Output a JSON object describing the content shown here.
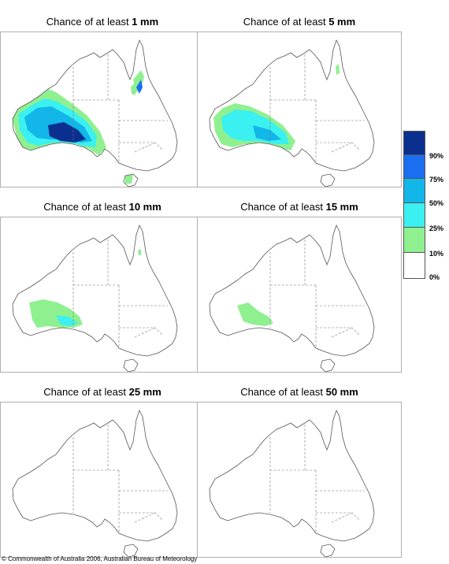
{
  "panels": [
    {
      "prefix": "Chance of at least",
      "amount": "1 mm",
      "level": 1
    },
    {
      "prefix": "Chance of at least",
      "amount": "5 mm",
      "level": 2
    },
    {
      "prefix": "Chance of at least",
      "amount": "10 mm",
      "level": 3
    },
    {
      "prefix": "Chance of at least",
      "amount": "15 mm",
      "level": 4
    },
    {
      "prefix": "Chance of at least",
      "amount": "25 mm",
      "level": 5
    },
    {
      "prefix": "Chance of at least",
      "amount": "50 mm",
      "level": 6
    }
  ],
  "legend": {
    "labels": [
      "90%",
      "75%",
      "50%",
      "25%",
      "10%",
      "0%"
    ],
    "colors": [
      "#0b2f8f",
      "#1a6ff0",
      "#12b6e8",
      "#3af0f0",
      "#8ff08f",
      "#ffffff"
    ]
  },
  "copyright": "© Commonwealth of Australia 2006, Australian Bureau of Meteorology"
}
